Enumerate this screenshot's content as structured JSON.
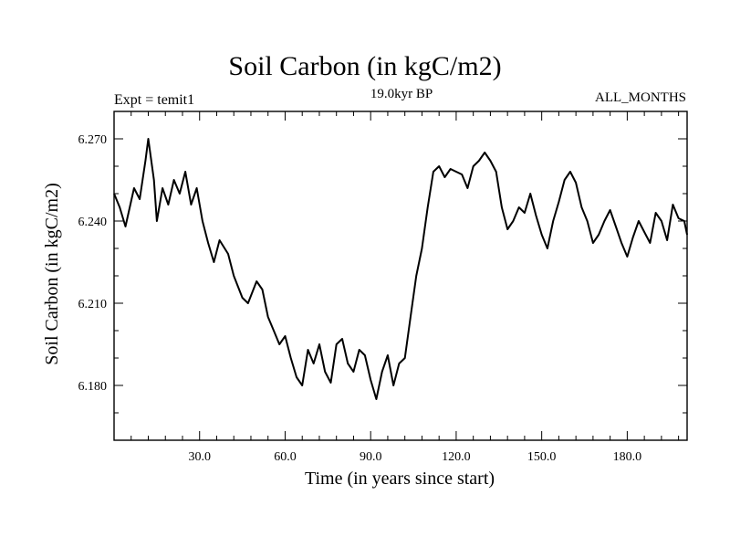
{
  "chart_data": {
    "type": "line",
    "title": "Soil Carbon (in kgC/m2)",
    "left_string": "Expt = temit1",
    "center_string": "19.0kyr BP",
    "right_string": "ALL_MONTHS",
    "xlabel": "Time (in years since start)",
    "ylabel": "Soil Carbon (in kgC/m2)",
    "xlim": [
      0,
      201
    ],
    "ylim": [
      6.16,
      6.28
    ],
    "x_ticks": [
      30,
      60,
      90,
      120,
      150,
      180
    ],
    "x_tick_labels": [
      "30.0",
      "60.0",
      "90.0",
      "120.0",
      "150.0",
      "180.0"
    ],
    "y_ticks": [
      6.18,
      6.21,
      6.24,
      6.27
    ],
    "y_tick_labels": [
      "6.180",
      "6.210",
      "6.240",
      "6.270"
    ],
    "grid": false,
    "color": "#000000",
    "series": [
      {
        "x": [
          0,
          2,
          4,
          7,
          9,
          11,
          12,
          14,
          15,
          17,
          19,
          21,
          23,
          25,
          27,
          29,
          31,
          33,
          35,
          37,
          40,
          42,
          45,
          47,
          50,
          52,
          54,
          56,
          58,
          60,
          62,
          64,
          66,
          68,
          70,
          72,
          74,
          76,
          78,
          80,
          82,
          84,
          86,
          88,
          90,
          92,
          94,
          96,
          98,
          100,
          102,
          104,
          106,
          108,
          110,
          112,
          114,
          116,
          118,
          120,
          122,
          124,
          126,
          128,
          130,
          132,
          134,
          136,
          138,
          140,
          142,
          144,
          146,
          148,
          150,
          152,
          154,
          156,
          158,
          160,
          162,
          164,
          166,
          168,
          170,
          172,
          174,
          176,
          178,
          180,
          182,
          184,
          186,
          188,
          190,
          192,
          194,
          196,
          198,
          200,
          201
        ],
        "y": [
          6.25,
          6.245,
          6.238,
          6.252,
          6.248,
          6.262,
          6.27,
          6.255,
          6.24,
          6.252,
          6.246,
          6.255,
          6.25,
          6.258,
          6.246,
          6.252,
          6.24,
          6.232,
          6.225,
          6.233,
          6.228,
          6.22,
          6.212,
          6.21,
          6.218,
          6.215,
          6.205,
          6.2,
          6.195,
          6.198,
          6.19,
          6.183,
          6.18,
          6.193,
          6.188,
          6.195,
          6.185,
          6.181,
          6.195,
          6.197,
          6.188,
          6.185,
          6.193,
          6.191,
          6.182,
          6.175,
          6.185,
          6.191,
          6.18,
          6.188,
          6.19,
          6.205,
          6.22,
          6.23,
          6.245,
          6.258,
          6.26,
          6.256,
          6.259,
          6.258,
          6.257,
          6.252,
          6.26,
          6.262,
          6.265,
          6.262,
          6.258,
          6.245,
          6.237,
          6.24,
          6.245,
          6.243,
          6.25,
          6.242,
          6.235,
          6.23,
          6.24,
          6.247,
          6.255,
          6.258,
          6.254,
          6.245,
          6.24,
          6.232,
          6.235,
          6.24,
          6.244,
          6.238,
          6.232,
          6.227,
          6.234,
          6.24,
          6.236,
          6.232,
          6.243,
          6.24,
          6.233,
          6.246,
          6.241,
          6.24,
          6.235
        ]
      }
    ]
  }
}
